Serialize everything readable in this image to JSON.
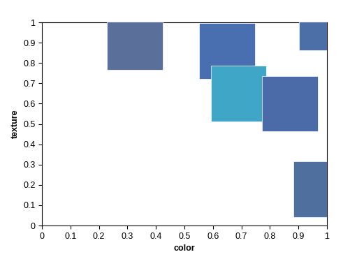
{
  "chart_data": {
    "type": "scatter",
    "x_label": "color",
    "y_label": "texture",
    "x": [
      0.325,
      0.65,
      1.0,
      0.69,
      0.87,
      0.98
    ],
    "values": [
      0.905,
      0.86,
      1.0,
      0.65,
      0.6,
      0.18
    ],
    "colors": [
      "#5a6f9a",
      "#4a6fb0",
      "#4d6fa8",
      "#3fa6c8",
      "#4a6aa8",
      "#4f6f9f"
    ],
    "marker": "square",
    "xlim": [
      0,
      1
    ],
    "ylim": [
      0,
      1
    ],
    "xticks": [
      0,
      0.1,
      0.2,
      0.3,
      0.4,
      0.5,
      0.6,
      0.7,
      0.8,
      0.9,
      1
    ],
    "yticks": [
      0,
      0.1,
      0.2,
      0.3,
      0.4,
      0.5,
      0.6,
      0.7,
      0.8,
      0.9,
      1
    ],
    "grid": false
  }
}
